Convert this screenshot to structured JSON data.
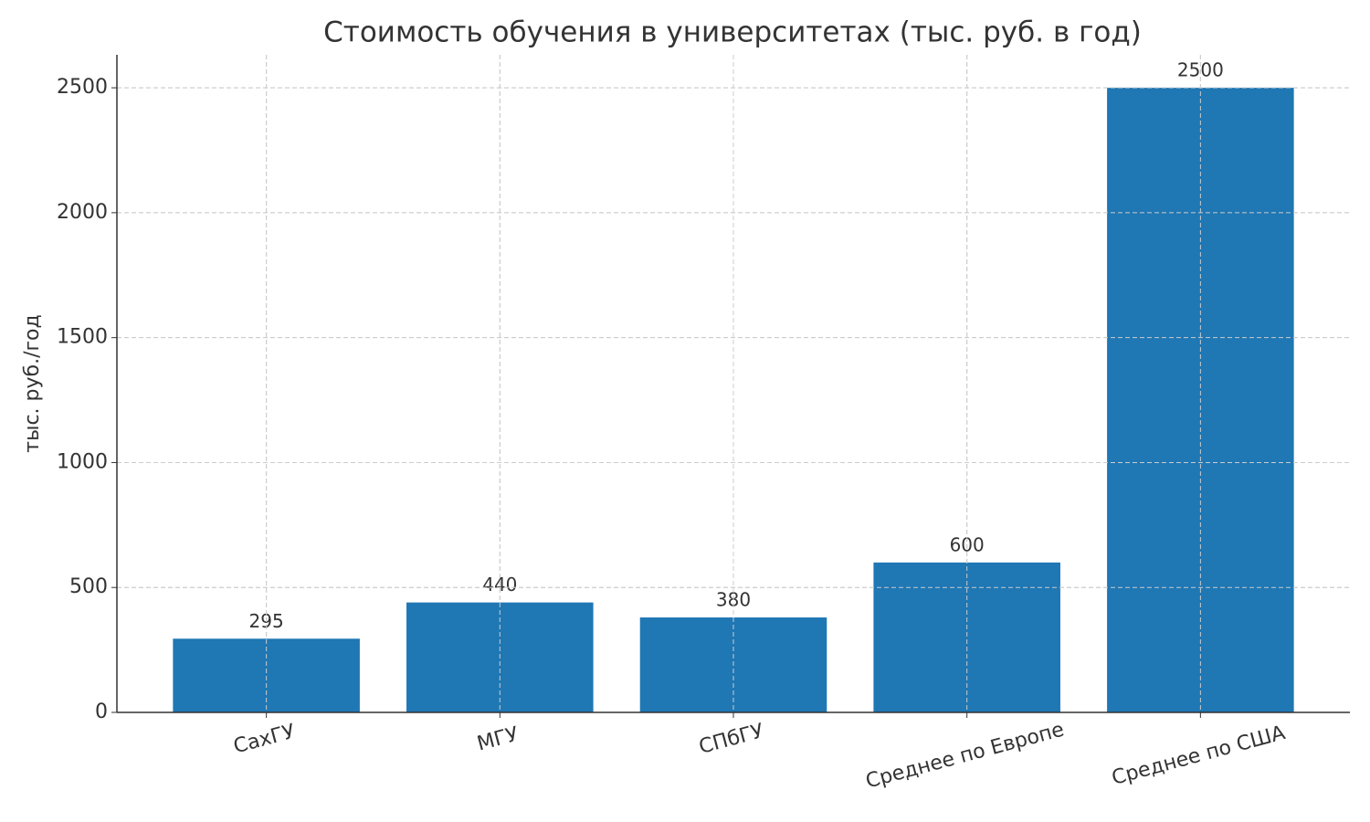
{
  "chart_data": {
    "type": "bar",
    "title": "Стоимость обучения в университетах (тыс. руб. в год)",
    "y_label": "тыс. руб./год",
    "categories": [
      "СахГУ",
      "МГУ",
      "СПбГУ",
      "Среднее по Европе",
      "Среднее по США"
    ],
    "values": [
      295,
      440,
      380,
      600,
      2500
    ],
    "color": "#1f77b4",
    "ylim": [
      0,
      2632
    ],
    "yticks": [
      0,
      500,
      1000,
      1500,
      2000,
      2500
    ],
    "grid": true
  }
}
